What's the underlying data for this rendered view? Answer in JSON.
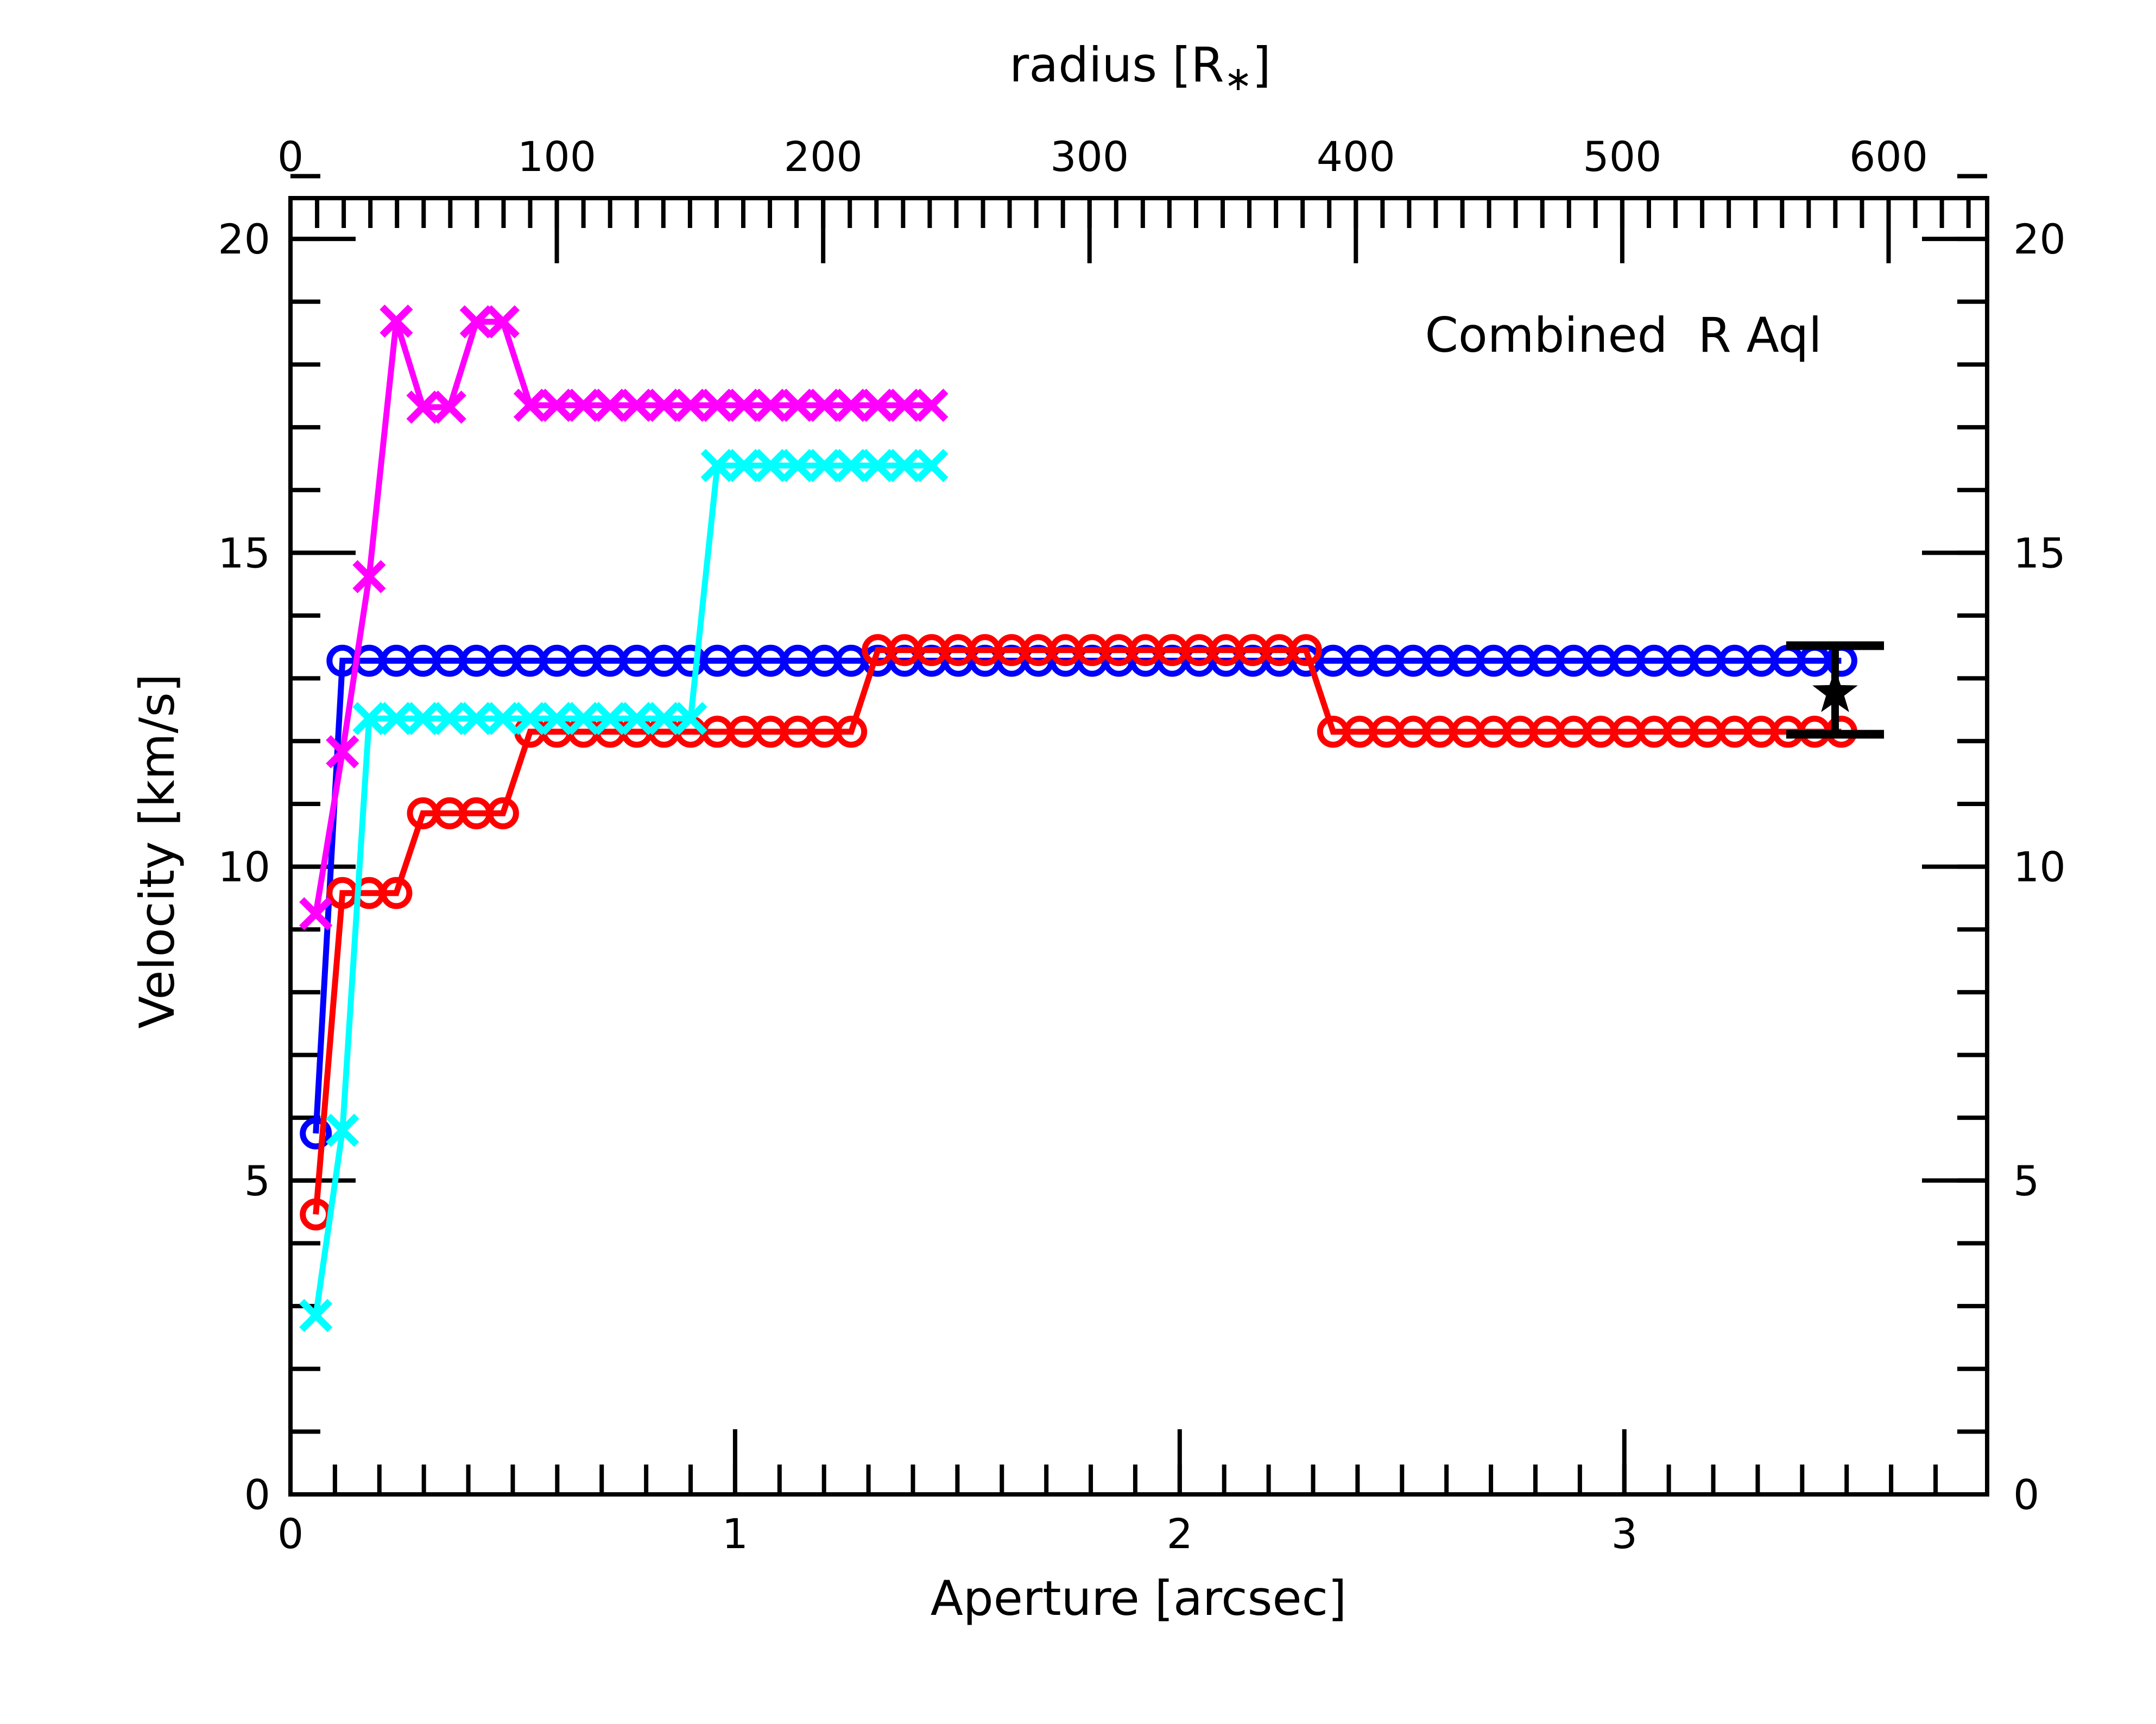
{
  "figure": {
    "background": "#ffffff"
  },
  "chart_data": {
    "type": "line",
    "title": "",
    "annotation": "Combined  R Aql",
    "xlabel": "Aperture [arcsec]",
    "ylabel": "Velocity [km/s]",
    "top_xlabel_parts": {
      "pre": "radius [R",
      "sub": "∗",
      "post": "]"
    },
    "grid": false,
    "legend": null,
    "axes": {
      "x": {
        "min": 0,
        "max": 3.816,
        "major_ticks": [
          0,
          1,
          2,
          3
        ],
        "tick_labels": [
          "0",
          "1",
          "2",
          "3"
        ],
        "minor_step": 0.1
      },
      "y": {
        "min": 0,
        "max": 20.65,
        "major_ticks": [
          0,
          5,
          10,
          15,
          20
        ],
        "tick_labels": [
          "0",
          "5",
          "10",
          "15",
          "20"
        ],
        "minor_step": 1
      },
      "top": {
        "min": 0,
        "max": 637,
        "major_ticks": [
          0,
          100,
          200,
          300,
          400,
          500,
          600
        ],
        "tick_labels": [
          "0",
          "100",
          "200",
          "300",
          "400",
          "500",
          "600"
        ],
        "minor_step": 10
      }
    },
    "series": [
      {
        "name": "blue-circles",
        "color": "#0000ff",
        "marker": "circle",
        "x": [
          0.057,
          0.117,
          0.177,
          0.238,
          0.298,
          0.358,
          0.418,
          0.478,
          0.539,
          0.599,
          0.659,
          0.719,
          0.779,
          0.84,
          0.9,
          0.96,
          1.02,
          1.08,
          1.141,
          1.201,
          1.261,
          1.321,
          1.381,
          1.442,
          1.502,
          1.562,
          1.622,
          1.682,
          1.743,
          1.803,
          1.863,
          1.923,
          1.983,
          2.044,
          2.104,
          2.164,
          2.224,
          2.284,
          2.345,
          2.405,
          2.465,
          2.525,
          2.585,
          2.646,
          2.706,
          2.766,
          2.826,
          2.886,
          2.947,
          3.007,
          3.067,
          3.127,
          3.187,
          3.248,
          3.308,
          3.368,
          3.428,
          3.488
        ],
        "y": [
          5.75,
          13.28,
          13.28,
          13.28,
          13.28,
          13.28,
          13.28,
          13.28,
          13.28,
          13.28,
          13.28,
          13.28,
          13.28,
          13.28,
          13.28,
          13.28,
          13.28,
          13.28,
          13.28,
          13.28,
          13.28,
          13.28,
          13.28,
          13.28,
          13.28,
          13.28,
          13.28,
          13.28,
          13.28,
          13.28,
          13.28,
          13.28,
          13.28,
          13.28,
          13.28,
          13.28,
          13.28,
          13.28,
          13.28,
          13.28,
          13.28,
          13.28,
          13.28,
          13.28,
          13.28,
          13.28,
          13.28,
          13.28,
          13.28,
          13.28,
          13.28,
          13.28,
          13.28,
          13.28,
          13.28,
          13.28,
          13.28,
          13.28
        ]
      },
      {
        "name": "red-circles",
        "color": "#ff0000",
        "marker": "circle",
        "x": [
          0.057,
          0.117,
          0.177,
          0.238,
          0.298,
          0.358,
          0.418,
          0.478,
          0.539,
          0.599,
          0.659,
          0.719,
          0.779,
          0.84,
          0.9,
          0.96,
          1.02,
          1.08,
          1.141,
          1.201,
          1.261,
          1.321,
          1.381,
          1.442,
          1.502,
          1.562,
          1.622,
          1.682,
          1.743,
          1.803,
          1.863,
          1.923,
          1.983,
          2.044,
          2.104,
          2.164,
          2.224,
          2.284,
          2.345,
          2.405,
          2.465,
          2.525,
          2.585,
          2.646,
          2.706,
          2.766,
          2.826,
          2.886,
          2.947,
          3.007,
          3.067,
          3.127,
          3.187,
          3.248,
          3.308,
          3.368,
          3.428,
          3.488
        ],
        "y": [
          4.46,
          9.58,
          9.58,
          9.58,
          10.85,
          10.85,
          10.85,
          10.85,
          12.15,
          12.15,
          12.15,
          12.15,
          12.15,
          12.15,
          12.15,
          12.15,
          12.15,
          12.15,
          12.15,
          12.15,
          12.15,
          13.45,
          13.45,
          13.45,
          13.45,
          13.45,
          13.45,
          13.45,
          13.45,
          13.45,
          13.45,
          13.45,
          13.45,
          13.45,
          13.45,
          13.45,
          13.45,
          13.45,
          12.15,
          12.15,
          12.15,
          12.15,
          12.15,
          12.15,
          12.15,
          12.15,
          12.15,
          12.15,
          12.15,
          12.15,
          12.15,
          12.15,
          12.15,
          12.15,
          12.15,
          12.15,
          12.15,
          12.15
        ]
      },
      {
        "name": "cyan-crosses",
        "color": "#00ffff",
        "marker": "x",
        "x": [
          0.057,
          0.117,
          0.177,
          0.238,
          0.298,
          0.358,
          0.418,
          0.478,
          0.539,
          0.599,
          0.659,
          0.719,
          0.779,
          0.84,
          0.9,
          0.96,
          1.02,
          1.08,
          1.141,
          1.201,
          1.261,
          1.321,
          1.381,
          1.442
        ],
        "y": [
          2.85,
          5.8,
          12.36,
          12.36,
          12.36,
          12.36,
          12.36,
          12.36,
          12.36,
          12.36,
          12.36,
          12.36,
          12.36,
          12.36,
          12.36,
          16.39,
          16.39,
          16.39,
          16.39,
          16.39,
          16.39,
          16.39,
          16.39,
          16.39
        ]
      },
      {
        "name": "magenta-crosses",
        "color": "#ff00ff",
        "marker": "x",
        "x": [
          0.057,
          0.117,
          0.177,
          0.238,
          0.298,
          0.358,
          0.418,
          0.478,
          0.539,
          0.599,
          0.659,
          0.719,
          0.779,
          0.84,
          0.9,
          0.96,
          1.02,
          1.08,
          1.141,
          1.201,
          1.261,
          1.321,
          1.381,
          1.442
        ],
        "y": [
          9.25,
          11.83,
          14.62,
          18.69,
          17.32,
          17.32,
          18.68,
          18.68,
          17.35,
          17.35,
          17.35,
          17.35,
          17.35,
          17.35,
          17.35,
          17.35,
          17.35,
          17.35,
          17.35,
          17.35,
          17.35,
          17.35,
          17.35,
          17.35
        ]
      }
    ],
    "star_point": {
      "name": "combined-star-estimate",
      "marker": "star",
      "color": "#000000",
      "x": 3.474,
      "y": 12.77,
      "y_err_low": 12.11,
      "y_err_high": 13.52,
      "cap_halfwidth": 0.11
    }
  }
}
